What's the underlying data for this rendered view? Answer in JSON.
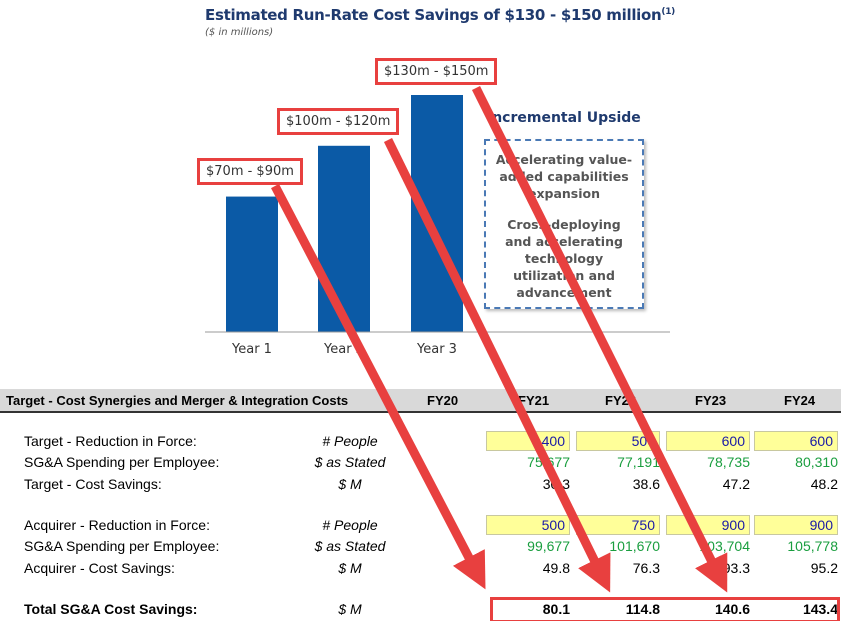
{
  "chart_data": {
    "type": "bar",
    "title": "Estimated Run-Rate Cost Savings of $130 - $150 million",
    "title_footnote": "(1)",
    "subtitle": "($ in millions)",
    "categories": [
      "Year 1",
      "Year 2",
      "Year 3"
    ],
    "values": [
      80,
      110,
      140
    ],
    "data_labels": [
      "$70m - $90m",
      "$100m - $120m",
      "$130m - $150m"
    ],
    "bar_color": "#0b5aa6",
    "ylim": [
      0,
      140
    ],
    "grid": false
  },
  "upside": {
    "title": "Incremental Upside",
    "items": [
      "Accelerating value-added capabilities expansion",
      "Cross-deploying and accelerating technology utilization and advancement"
    ]
  },
  "table": {
    "title": "Target - Cost Synergies and Merger & Integration Costs",
    "columns": [
      "FY20",
      "FY21",
      "FY22",
      "FY23",
      "FY24"
    ],
    "rows": [
      {
        "label": "Target - Reduction in Force:",
        "unit": "# People",
        "values": [
          "",
          "400",
          "500",
          "600",
          "600"
        ],
        "style": "input"
      },
      {
        "label": "SG&A Spending per Employee:",
        "unit": "$ as Stated",
        "values": [
          "",
          "75,677",
          "77,191",
          "78,735",
          "80,310"
        ],
        "style": "green"
      },
      {
        "label": "Target - Cost Savings:",
        "unit": "$ M",
        "values": [
          "",
          "30.3",
          "38.6",
          "47.2",
          "48.2"
        ],
        "style": "plain"
      },
      {
        "label": "Acquirer - Reduction in Force:",
        "unit": "# People",
        "values": [
          "",
          "500",
          "750",
          "900",
          "900"
        ],
        "style": "input"
      },
      {
        "label": "SG&A Spending per Employee:",
        "unit": "$ as Stated",
        "values": [
          "",
          "99,677",
          "101,670",
          "103,704",
          "105,778"
        ],
        "style": "green"
      },
      {
        "label": "Acquirer - Cost Savings:",
        "unit": "$ M",
        "values": [
          "",
          "49.8",
          "76.3",
          "93.3",
          "95.2"
        ],
        "style": "plain"
      }
    ],
    "total": {
      "label": "Total SG&A Cost Savings:",
      "unit": "$ M",
      "values": [
        "",
        "80.1",
        "114.8",
        "140.6",
        "143.4"
      ]
    }
  },
  "colors": {
    "highlight": "#e8403f",
    "input_fill": "#ffff99",
    "title": "#1f3a6e"
  }
}
